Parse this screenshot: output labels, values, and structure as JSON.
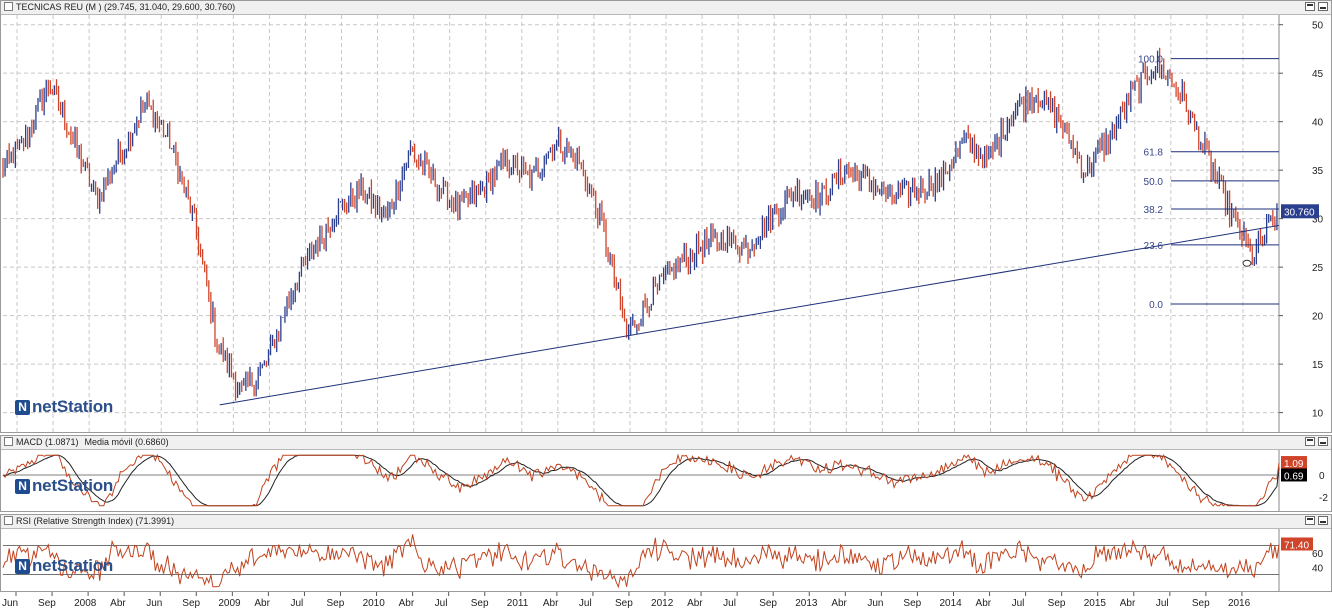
{
  "price_panel": {
    "title": "TECNICAS REU (M ) (29.745, 31.040, 29.600, 30.760)",
    "last_value": "30.760",
    "y_ticks": [
      "50",
      "45",
      "40",
      "35",
      "30",
      "25",
      "20",
      "15",
      "10"
    ],
    "fib_levels": [
      {
        "label": "100.0",
        "value": 46.5
      },
      {
        "label": "61.8",
        "value": 36.9
      },
      {
        "label": "50.0",
        "value": 33.9
      },
      {
        "label": "38.2",
        "value": 31.0
      },
      {
        "label": "23.6",
        "value": 27.3
      },
      {
        "label": "0.0",
        "value": 21.2
      }
    ],
    "logo_text": "netStation",
    "colors": {
      "up": "#2b3f8f",
      "down": "#d0442a",
      "trendline": "#1e2f7a",
      "fib": "#1e2f7a",
      "tag": "#2b3f8f"
    }
  },
  "macd_panel": {
    "title": "MACD (1.0871)",
    "legend_second": "Media móvil (0.6860)",
    "tag_macd": "1.09",
    "tag_signal": "0.69",
    "y_ticks": [
      "0",
      "-2"
    ],
    "colors": {
      "macd_tag": "#d0442a",
      "signal_tag": "#000000"
    }
  },
  "rsi_panel": {
    "title": "RSI (Relative Strength Index) (71.3991)",
    "tag": "71.40",
    "y_ticks": [
      "60",
      "40"
    ],
    "colors": {
      "line": "#c0431f",
      "tag": "#d0442a"
    }
  },
  "x_axis": {
    "labels": [
      "Jun",
      "Sep",
      "2008",
      "Abr",
      "Jun",
      "Sep",
      "2009",
      "Abr",
      "Jul",
      "Sep",
      "2010",
      "Abr",
      "Jul",
      "Sep",
      "2011",
      "Abr",
      "Jul",
      "Sep",
      "2012",
      "Abr",
      "Jul",
      "Sep",
      "2013",
      "Abr",
      "Jun",
      "Sep",
      "2014",
      "Abr",
      "Jul",
      "Sep",
      "2015",
      "Abr",
      "Jul",
      "Sep",
      "2016"
    ]
  },
  "chart_data": {
    "type": "line",
    "title": "TECNICAS REU (M )",
    "x": [
      "2007-06",
      "2007-08",
      "2007-10",
      "2007-12",
      "2008-02",
      "2008-04",
      "2008-06",
      "2008-08",
      "2008-10",
      "2008-12",
      "2009-02",
      "2009-04",
      "2009-06",
      "2009-08",
      "2009-10",
      "2009-12",
      "2010-02",
      "2010-04",
      "2010-06",
      "2010-08",
      "2010-10",
      "2010-12",
      "2011-02",
      "2011-04",
      "2011-06",
      "2011-08",
      "2011-10",
      "2011-12",
      "2012-02",
      "2012-04",
      "2012-06",
      "2012-08",
      "2012-10",
      "2012-12",
      "2013-02",
      "2013-04",
      "2013-06",
      "2013-08",
      "2013-10",
      "2013-12",
      "2014-02",
      "2014-04",
      "2014-06",
      "2014-08",
      "2014-10",
      "2014-12",
      "2015-02",
      "2015-04",
      "2015-06",
      "2015-08",
      "2015-10",
      "2015-12",
      "2016-02",
      "2016-03"
    ],
    "series": [
      {
        "values": [
          35,
          38,
          44,
          38,
          32,
          37,
          42,
          38,
          30,
          17,
          12,
          15,
          22,
          27,
          31,
          33,
          30,
          37,
          34,
          31,
          33,
          36,
          34,
          38,
          36,
          29,
          18,
          22,
          25,
          27,
          28,
          27,
          30,
          33,
          32,
          35,
          34,
          32,
          33,
          34,
          38,
          36,
          41,
          43,
          40,
          35,
          38,
          43,
          46,
          43,
          37,
          31,
          26,
          30.76
        ]
      }
    ],
    "ylim": [
      8,
      51
    ],
    "trendline": {
      "from": {
        "x": "2008-12",
        "y": 10.8
      },
      "to": {
        "x": "2016-03",
        "y": 29.3
      }
    },
    "macd": {
      "current": 1.0871,
      "signal": 0.686,
      "ylim": [
        -3,
        2
      ]
    },
    "rsi": {
      "current": 71.3991,
      "ylim": [
        10,
        90
      ],
      "bands": [
        70,
        30
      ]
    }
  }
}
